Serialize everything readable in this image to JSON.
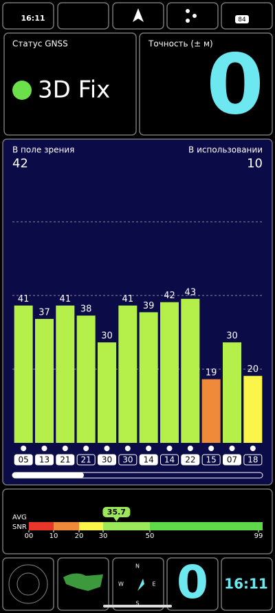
{
  "status_bar": {
    "time": "16:11",
    "battery": "84"
  },
  "status_panel": {
    "label": "Статус GNSS",
    "value": "3D Fix"
  },
  "accuracy_panel": {
    "label": "Точность (± м)",
    "value": "0"
  },
  "chart_data": {
    "type": "bar",
    "left_label": "В поле зрения",
    "left_value": "42",
    "right_label": "В использовании",
    "right_value": "10",
    "categories": [
      "05",
      "13",
      "21",
      "21",
      "30",
      "30",
      "14",
      "14",
      "22",
      "15",
      "07",
      "18"
    ],
    "values": [
      41,
      37,
      41,
      38,
      30,
      41,
      39,
      42,
      43,
      19,
      30,
      20
    ],
    "colors": [
      "#b5f04a",
      "#b5f04a",
      "#b5f04a",
      "#b5f04a",
      "#b5f04a",
      "#b5f04a",
      "#b5f04a",
      "#b5f04a",
      "#b5f04a",
      "#ef8a3a",
      "#b5f04a",
      "#fbf54a"
    ],
    "highlighted": [
      true,
      true,
      true,
      false,
      true,
      false,
      true,
      false,
      true,
      false,
      true,
      false
    ],
    "ylim": [
      0,
      88
    ],
    "grid": true
  },
  "snr_panel": {
    "label_avg": "AVG",
    "label_snr": "SNR",
    "avg": 35.7,
    "ticks": [
      {
        "value": 0,
        "label": "00"
      },
      {
        "value": 10,
        "label": "10"
      },
      20,
      30,
      50,
      99
    ],
    "colors": [
      "#e8372a",
      "#ef8a3a",
      "#fbf54a",
      "#9be85a",
      "#5fd84a"
    ]
  },
  "bottom_bar": {
    "accuracy": "0",
    "time": "16:11",
    "compass": [
      "N",
      "S",
      "W",
      "E"
    ]
  }
}
